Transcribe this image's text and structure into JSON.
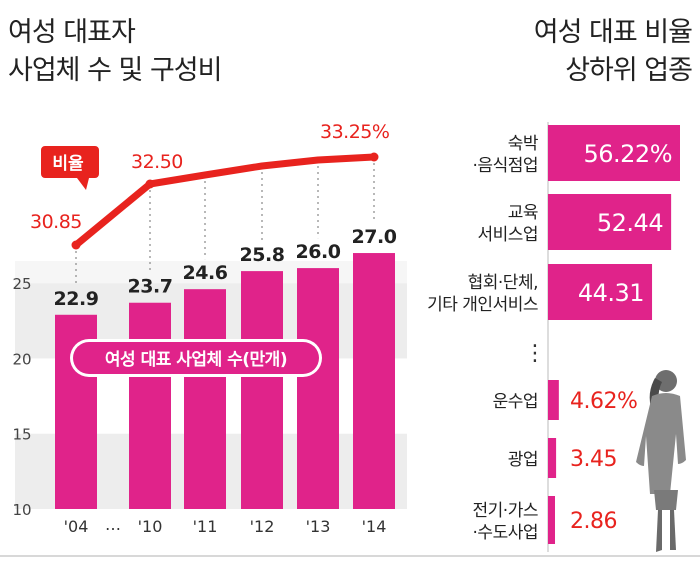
{
  "left_title": [
    "여성 대표자",
    "사업체 수 및 구성비"
  ],
  "right_title": [
    "여성 대표 비율",
    "상하위 업종"
  ],
  "colors": {
    "bar": "#e0238a",
    "line": "#e8231e",
    "label_red": "#e8231e",
    "text": "#222222",
    "panel_bg": "#ededed",
    "banner_bg": "#e0238a"
  },
  "chart_data": [
    {
      "type": "bar",
      "title": "여성 대표자 사업체 수 및 구성비",
      "categories": [
        "'04",
        "'10",
        "'11",
        "'12",
        "'13",
        "'14"
      ],
      "gap_label": "…",
      "y_ticks": [
        10,
        15,
        20,
        25
      ],
      "ylim": [
        10,
        27.8
      ],
      "series": [
        {
          "name": "여성 대표 사업체 수(만개)",
          "type": "bar",
          "values": [
            22.9,
            23.7,
            24.6,
            25.8,
            26.0,
            27.0
          ],
          "labels": [
            "22.9",
            "23.7",
            "24.6",
            "25.8",
            "26.0",
            "27.0"
          ]
        },
        {
          "name": "비율",
          "type": "line",
          "values": [
            30.85,
            32.5,
            null,
            null,
            null,
            33.25
          ],
          "labels": [
            "30.85",
            "32.50",
            "",
            "",
            "",
            "33.25%"
          ]
        }
      ]
    },
    {
      "type": "bar",
      "title": "여성 대표 비율 상하위 업종",
      "orientation": "horizontal",
      "unit": "%",
      "top": [
        {
          "category": [
            "숙박",
            "·음식점업"
          ],
          "value": 56.22,
          "label": "56.22%"
        },
        {
          "category": [
            "교육",
            "서비스업"
          ],
          "value": 52.44,
          "label": "52.44"
        },
        {
          "category": [
            "협회·단체,",
            "기타 개인서비스"
          ],
          "value": 44.31,
          "label": "44.31"
        }
      ],
      "ellipsis": "⋮",
      "bottom": [
        {
          "category": [
            "운수업"
          ],
          "value": 4.62,
          "label": "4.62%"
        },
        {
          "category": [
            "광업"
          ],
          "value": 3.45,
          "label": "3.45"
        },
        {
          "category": [
            "전기·가스",
            "·수도사업"
          ],
          "value": 2.86,
          "label": "2.86"
        }
      ]
    }
  ]
}
